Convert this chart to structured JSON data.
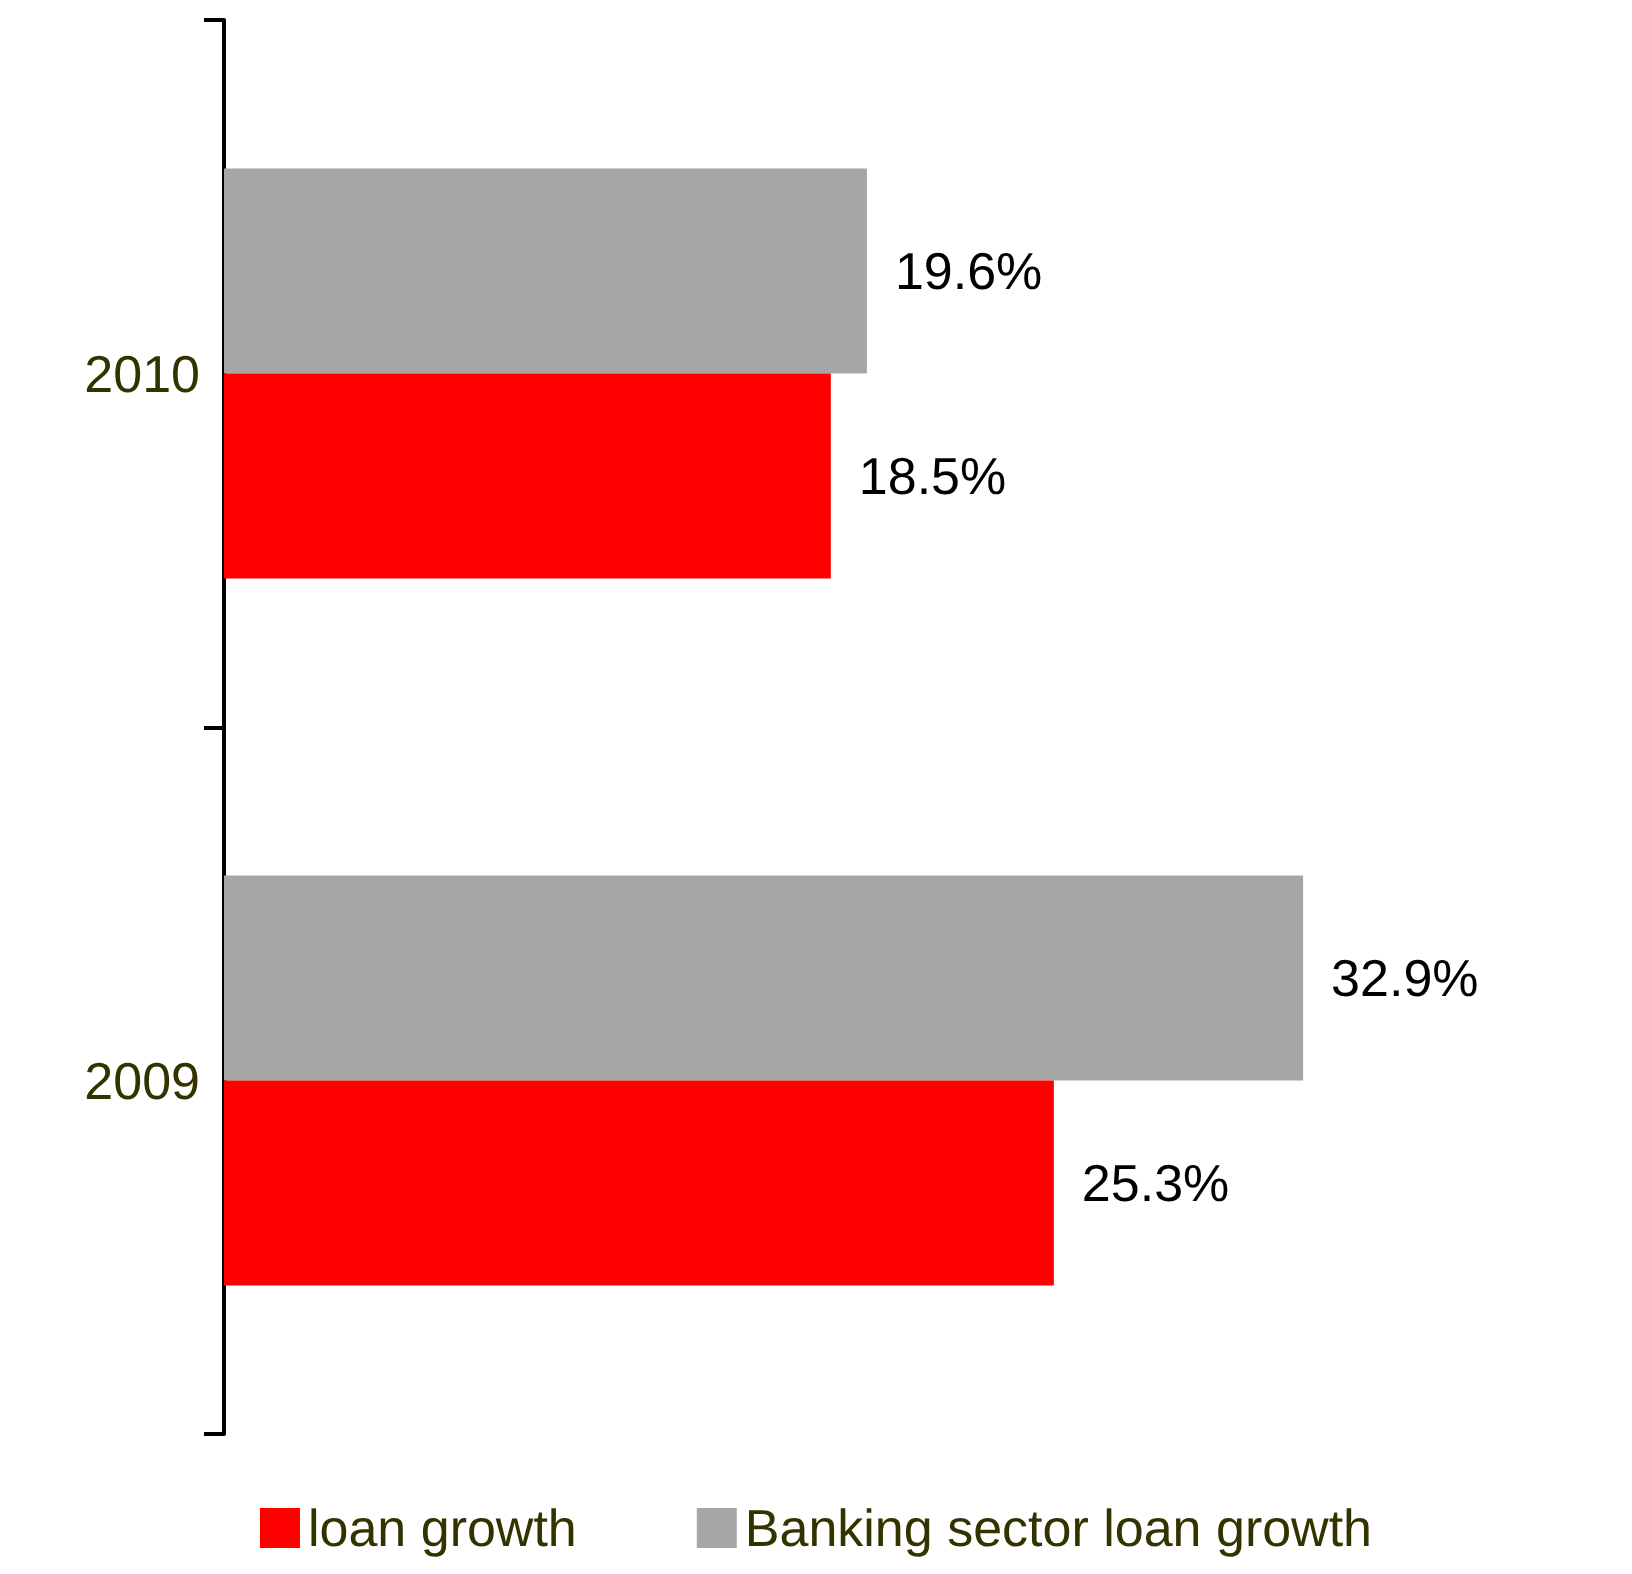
{
  "chart_data": {
    "type": "bar",
    "orientation": "horizontal",
    "categories": [
      "2010",
      "2009"
    ],
    "series": [
      {
        "name": "loan growth",
        "color": "#ff0000",
        "values": [
          18.5,
          25.3
        ],
        "value_labels": [
          "18.5%",
          "25.3%"
        ]
      },
      {
        "name": "Banking sector loan growth",
        "color": "#a6a6a6",
        "values": [
          19.6,
          32.9
        ],
        "value_labels": [
          "19.6%",
          "32.9%"
        ]
      }
    ],
    "legend": "bottom",
    "grid": false
  }
}
